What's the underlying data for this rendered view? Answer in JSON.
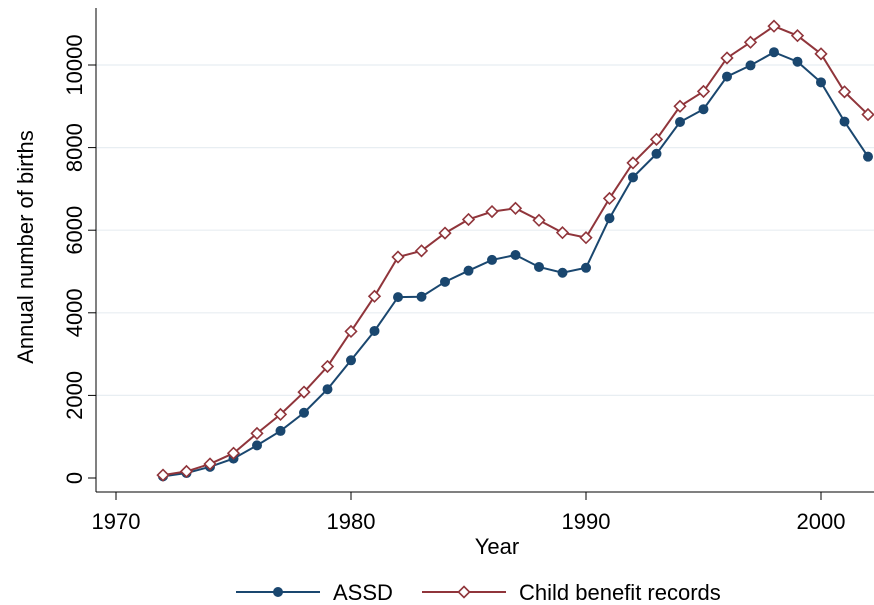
{
  "chart_data": {
    "type": "line",
    "title": "",
    "xlabel": "Year",
    "ylabel": "Annual number of births",
    "xlim": [
      1970,
      2002
    ],
    "ylim": [
      0,
      11000
    ],
    "x_ticks": [
      1970,
      1980,
      1990,
      2000
    ],
    "y_ticks": [
      0,
      2000,
      4000,
      6000,
      8000,
      10000
    ],
    "grid": "horizontal",
    "legend_position": "bottom",
    "x": [
      1972,
      1973,
      1974,
      1975,
      1976,
      1977,
      1978,
      1979,
      1980,
      1981,
      1982,
      1983,
      1984,
      1985,
      1986,
      1987,
      1988,
      1989,
      1990,
      1991,
      1992,
      1993,
      1994,
      1995,
      1996,
      1997,
      1998,
      1999,
      2000,
      2001,
      2002
    ],
    "series": [
      {
        "name": "ASSD",
        "color": "#1a476f",
        "marker": "circle",
        "values": [
          40,
          120,
          270,
          470,
          790,
          1140,
          1580,
          2150,
          2850,
          3560,
          4380,
          4390,
          4750,
          5020,
          5280,
          5400,
          5110,
          4970,
          5090,
          6290,
          7280,
          7850,
          8620,
          8930,
          9720,
          9990,
          10310,
          10080,
          9580,
          8630,
          7780
        ]
      },
      {
        "name": "Child benefit records",
        "color": "#90353b",
        "marker": "diamond",
        "values": [
          70,
          160,
          340,
          600,
          1080,
          1540,
          2080,
          2700,
          3550,
          4400,
          5350,
          5500,
          5930,
          6260,
          6450,
          6530,
          6240,
          5940,
          5820,
          6770,
          7630,
          8200,
          9000,
          9360,
          10170,
          10550,
          10940,
          10710,
          10270,
          9350,
          8800
        ]
      }
    ]
  }
}
